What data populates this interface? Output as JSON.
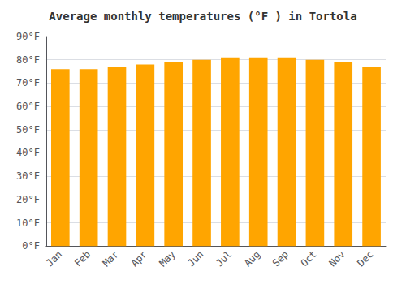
{
  "chart_data": {
    "type": "bar",
    "title": "Average monthly temperatures (°F ) in Tortola",
    "categories": [
      "Jan",
      "Feb",
      "Mar",
      "Apr",
      "May",
      "Jun",
      "Jul",
      "Aug",
      "Sep",
      "Oct",
      "Nov",
      "Dec"
    ],
    "values": [
      76,
      76,
      77,
      78,
      79,
      80,
      81,
      81,
      81,
      80,
      79,
      77
    ],
    "color": "#FFA500",
    "ylim": [
      0,
      90
    ],
    "yticks": [
      {
        "value": 0,
        "label": "0°F"
      },
      {
        "value": 10,
        "label": "10°F"
      },
      {
        "value": 20,
        "label": "20°F"
      },
      {
        "value": 30,
        "label": "30°F"
      },
      {
        "value": 40,
        "label": "40°F"
      },
      {
        "value": 50,
        "label": "50°F"
      },
      {
        "value": 60,
        "label": "60°F"
      },
      {
        "value": 70,
        "label": "70°F"
      },
      {
        "value": 80,
        "label": "80°F"
      },
      {
        "value": 90,
        "label": "90°F"
      }
    ],
    "grid": true
  }
}
